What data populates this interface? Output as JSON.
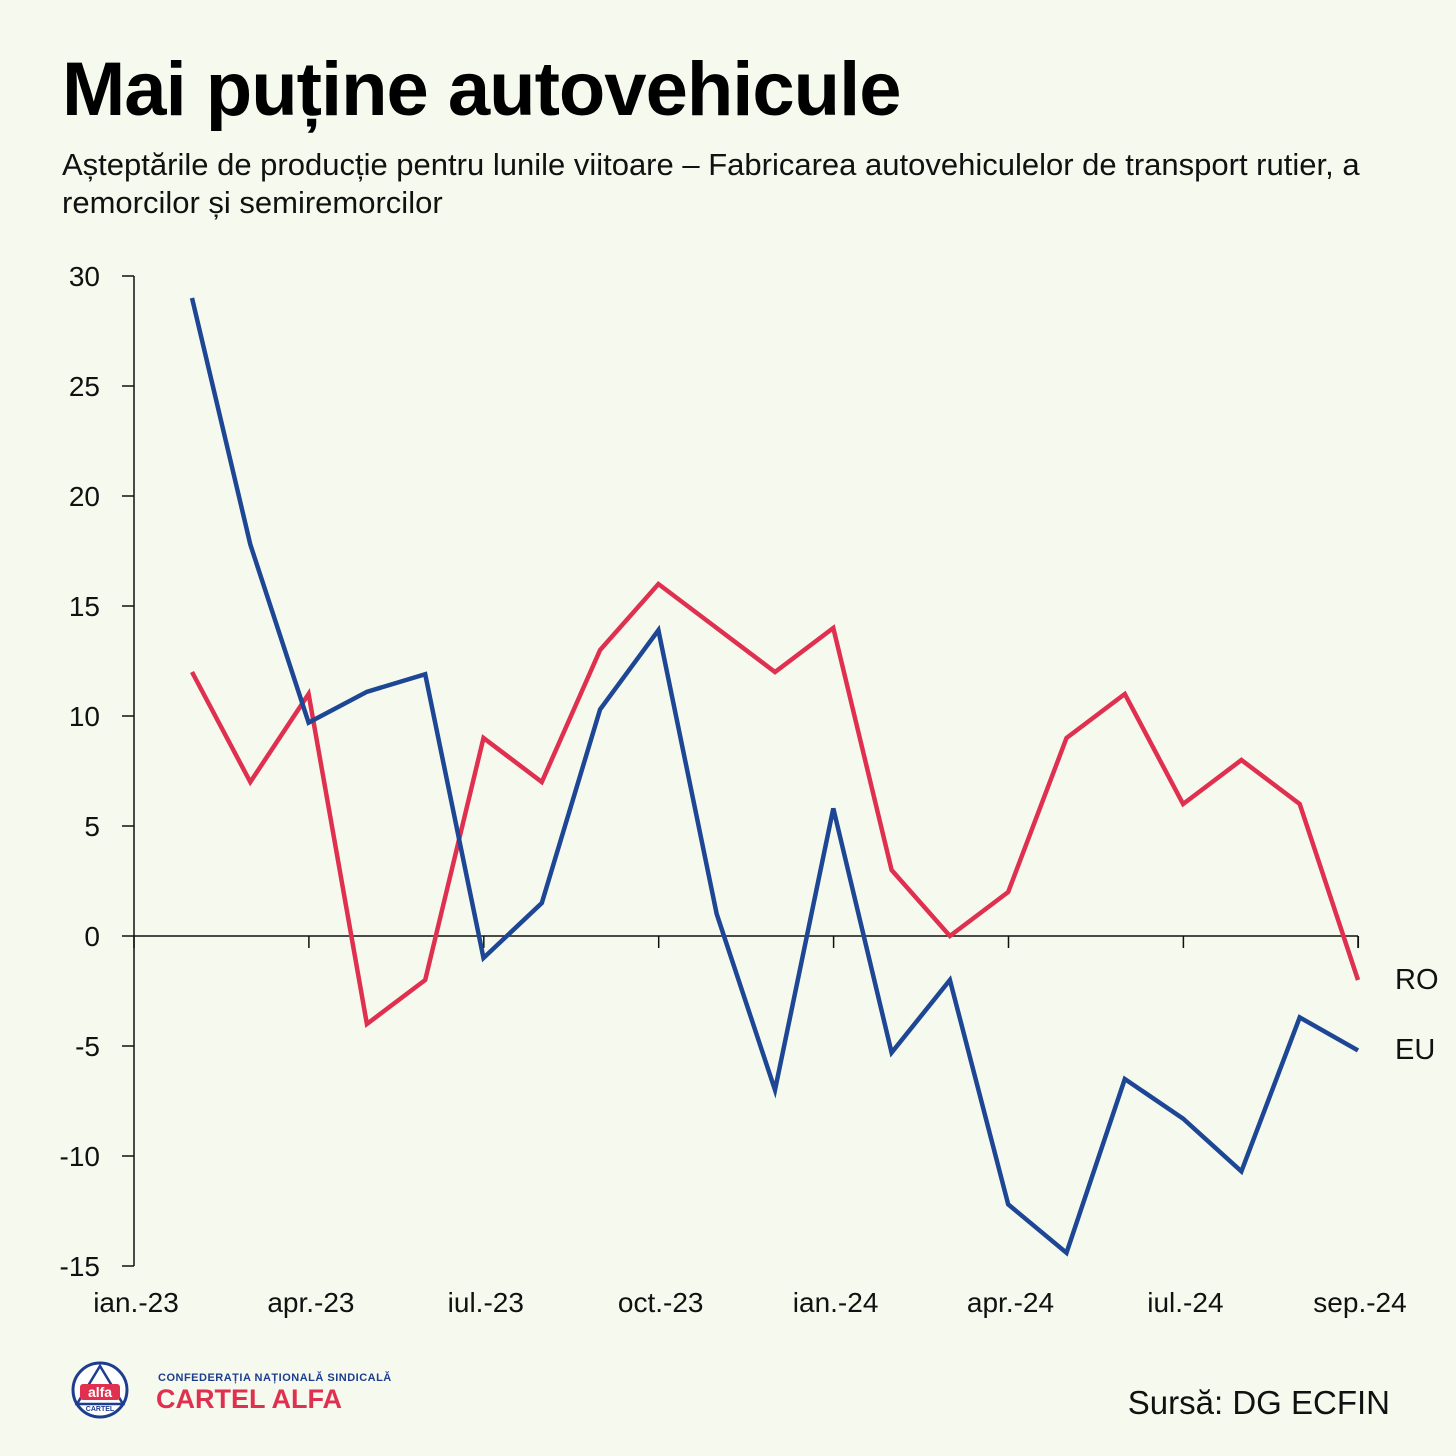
{
  "header": {
    "title": "Mai puține autovehicule",
    "subtitle": "Așteptările de producție pentru lunile viitoare – Fabricarea autovehiculelor de transport rutier, a remorcilor și semiremorcilor"
  },
  "colors": {
    "ro": "#e0304f",
    "eu": "#1d4694",
    "axis": "#111111"
  },
  "chart_data": {
    "type": "line",
    "title": "Mai puține autovehicule",
    "subtitle": "Așteptările de producție pentru lunile viitoare – Fabricarea autovehiculelor de transport rutier, a remorcilor și semiremorcilor",
    "x": [
      "ian.-23",
      "feb.-23",
      "mar.-23",
      "apr.-23",
      "mai.-23",
      "iun.-23",
      "iul.-23",
      "aug.-23",
      "sep.-23",
      "oct.-23",
      "nov.-23",
      "dec.-23",
      "ian.-24",
      "feb.-24",
      "mar.-24",
      "apr.-24",
      "mai.-24",
      "iun.-24",
      "iul.-24",
      "aug.-24",
      "sep.-24"
    ],
    "x_tick_labels": [
      "ian.-23",
      "apr.-23",
      "iul.-23",
      "oct.-23",
      "ian.-24",
      "apr.-24",
      "iul.-24",
      "sep.-24"
    ],
    "ylim": [
      -15,
      30
    ],
    "y_ticks": [
      30,
      25,
      20,
      15,
      10,
      5,
      0,
      -5,
      -10,
      -15
    ],
    "grid": false,
    "series": [
      {
        "name": "RO",
        "values": [
          12,
          7,
          11,
          -4,
          -2,
          9,
          7,
          13,
          16,
          14,
          12,
          14,
          3,
          0,
          2,
          9,
          11,
          6,
          8,
          6,
          -2
        ]
      },
      {
        "name": "EU",
        "values": [
          29,
          17.8,
          9.7,
          11.1,
          11.9,
          -1,
          1.5,
          10.3,
          13.9,
          1,
          -7,
          5.8,
          -5.3,
          -2,
          -12.2,
          -14.4,
          -6.5,
          -8.3,
          -10.7,
          -3.7,
          -5.2
        ]
      }
    ]
  },
  "footer": {
    "logo_top": "CONFEDERAȚIA NAȚIONALĂ SINDICALĂ",
    "logo_main": "CARTEL ALFA",
    "logo_badge_word": "alfa",
    "logo_badge_small": "CARTEL",
    "source": "Sursă: DG ECFIN"
  }
}
